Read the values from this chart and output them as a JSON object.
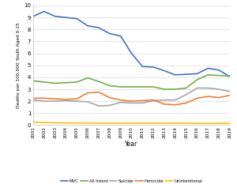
{
  "years": [
    2001,
    2002,
    2003,
    2004,
    2005,
    2006,
    2007,
    2008,
    2009,
    2010,
    2011,
    2012,
    2013,
    2014,
    2015,
    2016,
    2017,
    2018,
    2019
  ],
  "MVC": [
    9.1,
    9.5,
    9.1,
    9.0,
    8.9,
    8.3,
    8.15,
    7.65,
    7.45,
    6.0,
    4.9,
    4.85,
    4.55,
    4.2,
    4.25,
    4.3,
    4.75,
    4.6,
    4.05
  ],
  "All_Intent": [
    3.7,
    3.6,
    3.5,
    3.55,
    3.6,
    3.95,
    3.65,
    3.3,
    3.2,
    3.2,
    3.2,
    3.2,
    3.0,
    3.0,
    3.1,
    3.8,
    4.2,
    4.15,
    4.1
  ],
  "Suicide": [
    2.1,
    2.0,
    2.0,
    2.05,
    2.0,
    1.95,
    1.6,
    1.65,
    1.9,
    1.85,
    1.85,
    2.05,
    2.1,
    2.1,
    2.55,
    3.1,
    3.1,
    3.0,
    2.8
  ],
  "Homicide": [
    2.25,
    2.25,
    2.2,
    2.15,
    2.2,
    2.7,
    2.75,
    2.3,
    2.1,
    2.0,
    2.05,
    2.1,
    1.75,
    1.7,
    1.85,
    2.25,
    2.4,
    2.3,
    2.5
  ],
  "Unintentional": [
    0.25,
    0.22,
    0.2,
    0.18,
    0.18,
    0.18,
    0.17,
    0.17,
    0.17,
    0.17,
    0.17,
    0.17,
    0.17,
    0.17,
    0.17,
    0.15,
    0.15,
    0.15,
    0.15
  ],
  "colors": {
    "MVC": "#4472C4",
    "All_Intent": "#70AD47",
    "Suicide": "#A5A5A5",
    "Homicide": "#ED7D31",
    "Unintentional": "#FFC000"
  },
  "ylabel": "Deaths per 100,000 Youth Aged 0-15",
  "xlabel": "Year",
  "ylim": [
    0,
    10
  ],
  "yticks": [
    0,
    1,
    2,
    3,
    4,
    5,
    6,
    7,
    8,
    9,
    10
  ],
  "legend_labels": [
    "MVC",
    "All Intent",
    "Suicide",
    "Homicide",
    "Unintentional"
  ],
  "legend_keys": [
    "MVC",
    "All_Intent",
    "Suicide",
    "Homicide",
    "Unintentional"
  ],
  "bg_color": "#FFFFFF",
  "grid_color": "#D9D9D9",
  "spine_color": "#BFBFBF"
}
